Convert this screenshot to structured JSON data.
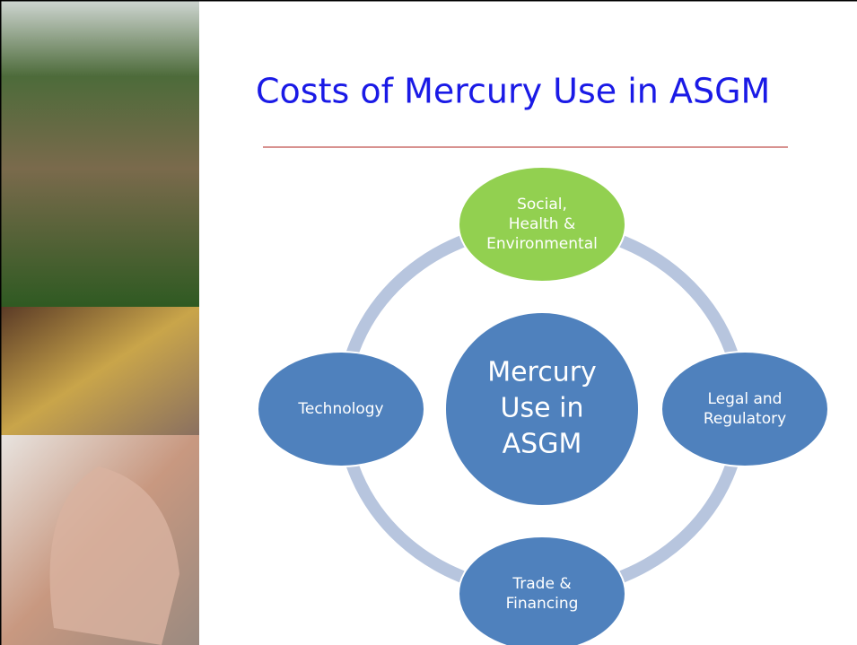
{
  "title": "Costs of Mercury Use in ASGM",
  "center": {
    "lines": [
      "Mercury",
      "Use in",
      "ASGM"
    ]
  },
  "nodes": [
    {
      "lines": [
        "Social,",
        "Health &",
        "Environmental"
      ]
    },
    {
      "lines": [
        "Legal and",
        "Regulatory"
      ]
    },
    {
      "lines": [
        "Trade &",
        "Financing"
      ]
    },
    {
      "lines": [
        "Technology"
      ]
    }
  ]
}
